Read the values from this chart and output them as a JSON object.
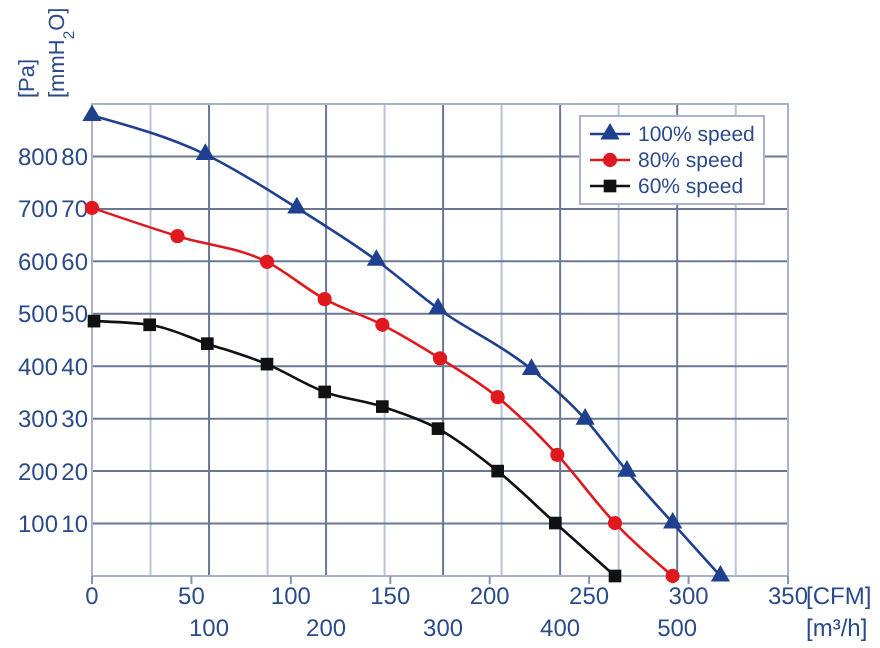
{
  "chart_data": {
    "type": "line",
    "xlabel": "[CFM]",
    "x2label": "[m³/h]",
    "ylabel": "[Pa]",
    "y2label": "[mmH$_{2}$O]",
    "xlim": [
      0,
      350
    ],
    "xticks": [
      0,
      50,
      100,
      150,
      200,
      250,
      300,
      350
    ],
    "x2lim": [
      0,
      594.7
    ],
    "x2ticks": [
      {
        "value": 50,
        "label": null
      },
      100,
      {
        "value": 150,
        "label": null
      },
      200,
      {
        "value": 250,
        "label": null
      },
      300,
      {
        "value": 350,
        "label": null
      },
      400,
      {
        "value": 450,
        "label": null
      },
      500,
      {
        "value": 550,
        "label": null
      }
    ],
    "ylim": [
      0,
      900
    ],
    "yticks": [
      100,
      200,
      300,
      400,
      500,
      600,
      700,
      800
    ],
    "y2lim": [
      0,
      90
    ],
    "y2ticks": [
      10,
      20,
      30,
      40,
      50,
      60,
      70,
      80
    ],
    "grid": true,
    "legend": "top right",
    "line_style": "solid",
    "series": [
      {
        "name": "100% speed",
        "color": "#1f3f8f",
        "marker": "triangle",
        "x": [
          0,
          57,
          103,
          143,
          174,
          221,
          248,
          269,
          292,
          316
        ],
        "values": [
          878,
          804,
          702,
          602,
          510,
          394,
          299,
          200,
          101,
          0
        ]
      },
      {
        "name": "80% speed",
        "color": "#e0191e",
        "marker": "circle",
        "x": [
          0,
          43,
          88,
          117,
          146,
          175,
          204,
          234,
          263,
          292
        ],
        "values": [
          702,
          648,
          599,
          528,
          479,
          415,
          341,
          231,
          101,
          0
        ]
      },
      {
        "name": "60% speed",
        "color": "#111111",
        "marker": "square",
        "x": [
          1,
          29,
          58,
          88,
          117,
          146,
          174,
          204,
          233,
          263
        ],
        "values": [
          486,
          479,
          443,
          404,
          351,
          323,
          281,
          200,
          101,
          0
        ]
      }
    ]
  }
}
